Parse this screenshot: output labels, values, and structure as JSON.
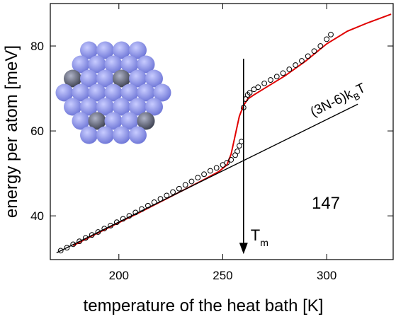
{
  "chart_data": {
    "type": "scatter",
    "xlabel": "temperature of the heat bath  [K]",
    "ylabel": "energy per atom [meV]",
    "xlim": [
      167,
      332
    ],
    "ylim": [
      29.7,
      90
    ],
    "xticks": [
      200,
      250,
      300
    ],
    "yticks": [
      40,
      60,
      80
    ],
    "series": [
      {
        "type": "scatter",
        "color": "#000000",
        "x": [
          172,
          175,
          178,
          181,
          184,
          187,
          190,
          193,
          196,
          199,
          202,
          205,
          208,
          211,
          214,
          217,
          220,
          223,
          226,
          229,
          232,
          235,
          238,
          241,
          244,
          247,
          250,
          252,
          254,
          256,
          257,
          258,
          259,
          260,
          261,
          262,
          263,
          265,
          267,
          270,
          273,
          276,
          279,
          282,
          285,
          288,
          291,
          294,
          297,
          300,
          302
        ],
        "values": [
          31.8,
          32.5,
          33.3,
          34.0,
          34.8,
          35.5,
          36.2,
          37.0,
          37.7,
          38.5,
          39.3,
          40.0,
          40.8,
          41.6,
          42.4,
          43.2,
          44.0,
          44.8,
          45.6,
          46.4,
          47.3,
          48.1,
          49.0,
          49.8,
          50.6,
          51.3,
          52.0,
          52.5,
          53.2,
          54.3,
          55.2,
          56.5,
          57.5,
          65.5,
          67.5,
          68.5,
          69.0,
          69.8,
          70.3,
          71.2,
          72.0,
          72.8,
          73.6,
          74.5,
          75.5,
          76.5,
          77.6,
          78.8,
          80.0,
          81.6,
          82.7
        ]
      },
      {
        "type": "line",
        "color": "#e00000",
        "x": [
          178,
          190,
          200,
          210,
          220,
          230,
          240,
          248,
          252,
          254,
          256,
          258,
          260,
          262,
          265,
          270,
          280,
          290,
          300,
          310,
          320,
          331
        ],
        "values": [
          33.0,
          36.0,
          38.4,
          40.8,
          43.3,
          45.8,
          48.3,
          50.4,
          52.0,
          54.5,
          59.0,
          63.5,
          66.0,
          67.5,
          68.5,
          70.0,
          73.0,
          76.5,
          80.5,
          83.5,
          85.5,
          87.5
        ]
      },
      {
        "type": "line",
        "color": "#000000",
        "x": [
          170,
          315
        ],
        "values": [
          31.3,
          66.3
        ]
      }
    ],
    "line_label": [
      "(3N-6)k",
      "B",
      "T"
    ],
    "cluster_label": "147",
    "melting_arrow": {
      "x": 260,
      "y_from": 77,
      "y_to": 31,
      "label": [
        "T",
        "m"
      ]
    }
  }
}
